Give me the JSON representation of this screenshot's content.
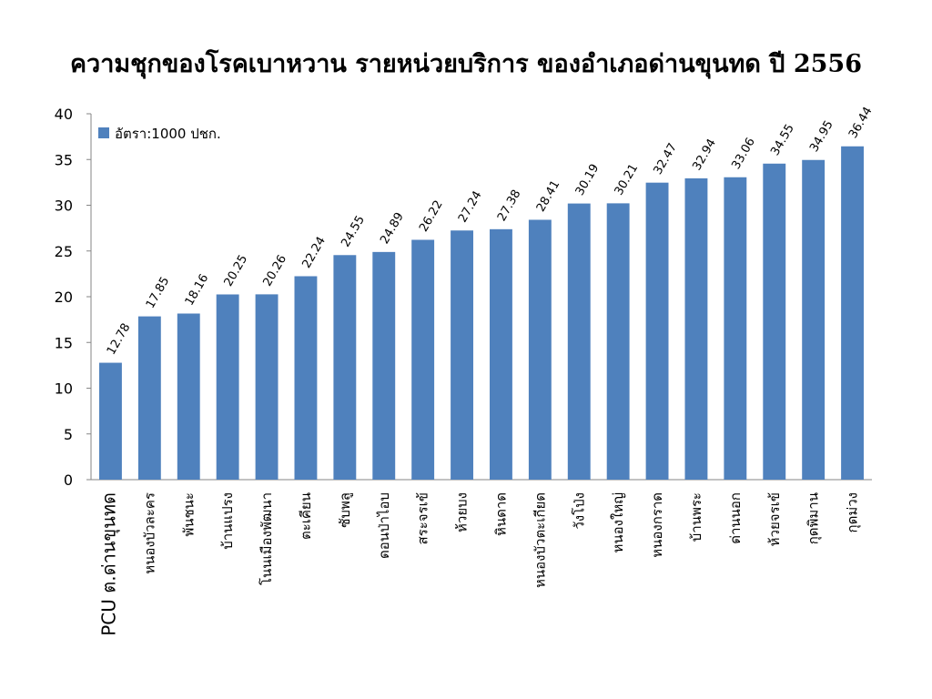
{
  "chart_data": {
    "type": "bar",
    "title": "ความชุกของโรคเบาหวาน รายหน่วยบริการ ของอำเภอด่านขุนทด ปี 2556",
    "categories": [
      "PCU ต.ด่านขุนทด",
      "หนองบัวละคร",
      "พันชนะ",
      "บ้านแปรง",
      "โนนเมืองพัฒนา",
      "ตะเคียน",
      "ซับพลู",
      "ดอนป่าไอบ",
      "สระจรเข้",
      "ห้วยบง",
      "หินดาด",
      "หนองบัวตะเกียด",
      "วังโป่ง",
      "หนองใหญ่",
      "หนองกราด",
      "บ้านพระ",
      "ด่านนอก",
      "ห้วยจรเข้",
      "กุดพิมาน",
      "กุดม่วง"
    ],
    "series": [
      {
        "name": "อัตรา:1000 ปชก.",
        "color": "#4F81BD",
        "values": [
          12.78,
          17.85,
          18.16,
          20.25,
          20.26,
          22.24,
          24.55,
          24.89,
          26.22,
          27.24,
          27.38,
          28.41,
          30.19,
          30.21,
          32.47,
          32.94,
          33.06,
          34.55,
          34.95,
          36.44
        ]
      }
    ],
    "value_labels": [
      "12.78",
      "17.85",
      "18.16",
      "20.25",
      "20.26",
      "22.24",
      "24.55",
      "24.89",
      "26.22",
      "27.24",
      "27.38",
      "28.41",
      "30.19",
      "30.21",
      "32.47",
      "32.94",
      "33.06",
      "34.55",
      "34.95",
      "36.44"
    ],
    "y_ticks": [
      "0",
      "5",
      "10",
      "15",
      "20",
      "25",
      "30",
      "35",
      "40"
    ],
    "ylim": [
      0,
      40
    ],
    "xlabel": "",
    "ylabel": "",
    "grid": false,
    "legend_position": "top-left"
  }
}
